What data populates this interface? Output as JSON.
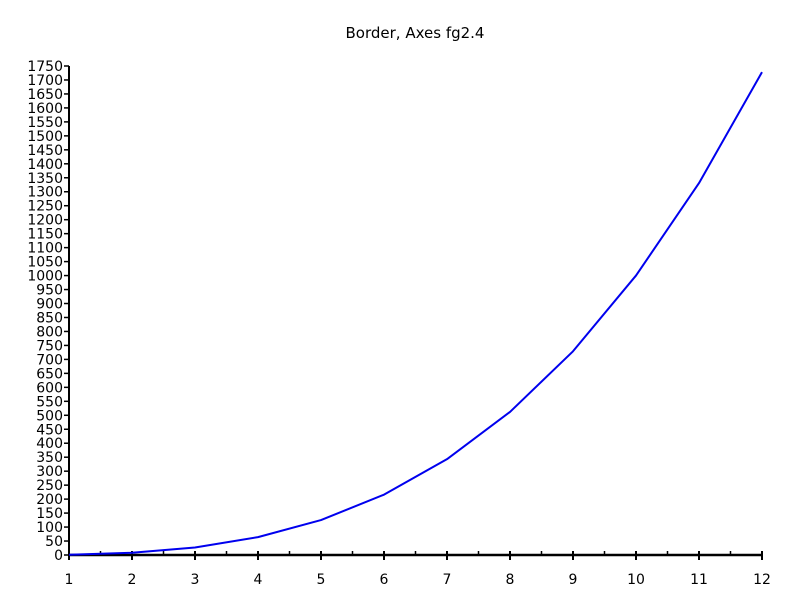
{
  "chart_data": {
    "type": "line",
    "title": "Border, Axes fg2.4",
    "xlabel": "",
    "ylabel": "",
    "x": [
      1,
      2,
      3,
      4,
      5,
      6,
      7,
      8,
      9,
      10,
      11,
      12
    ],
    "xlim": [
      1,
      12
    ],
    "ylim": [
      0,
      1750
    ],
    "x_ticks": [
      1,
      2,
      3,
      4,
      5,
      6,
      7,
      8,
      9,
      10,
      11,
      12
    ],
    "x_minor_ticks": [
      1.5,
      2.5,
      3.5,
      4.5,
      5.5,
      6.5,
      7.5,
      8.5,
      9.5,
      10.5,
      11.5
    ],
    "y_ticks": [
      0,
      50,
      100,
      150,
      200,
      250,
      300,
      350,
      400,
      450,
      500,
      550,
      600,
      650,
      700,
      750,
      800,
      850,
      900,
      950,
      1000,
      1050,
      1100,
      1150,
      1200,
      1250,
      1300,
      1350,
      1400,
      1450,
      1500,
      1550,
      1600,
      1650,
      1700,
      1750
    ],
    "grid": false,
    "series": [
      {
        "values": [
          1,
          8,
          27,
          64,
          125,
          216,
          343,
          512,
          729,
          1000,
          1331,
          1728
        ],
        "color": "#0000ee"
      }
    ],
    "axis_color": "#000000"
  }
}
